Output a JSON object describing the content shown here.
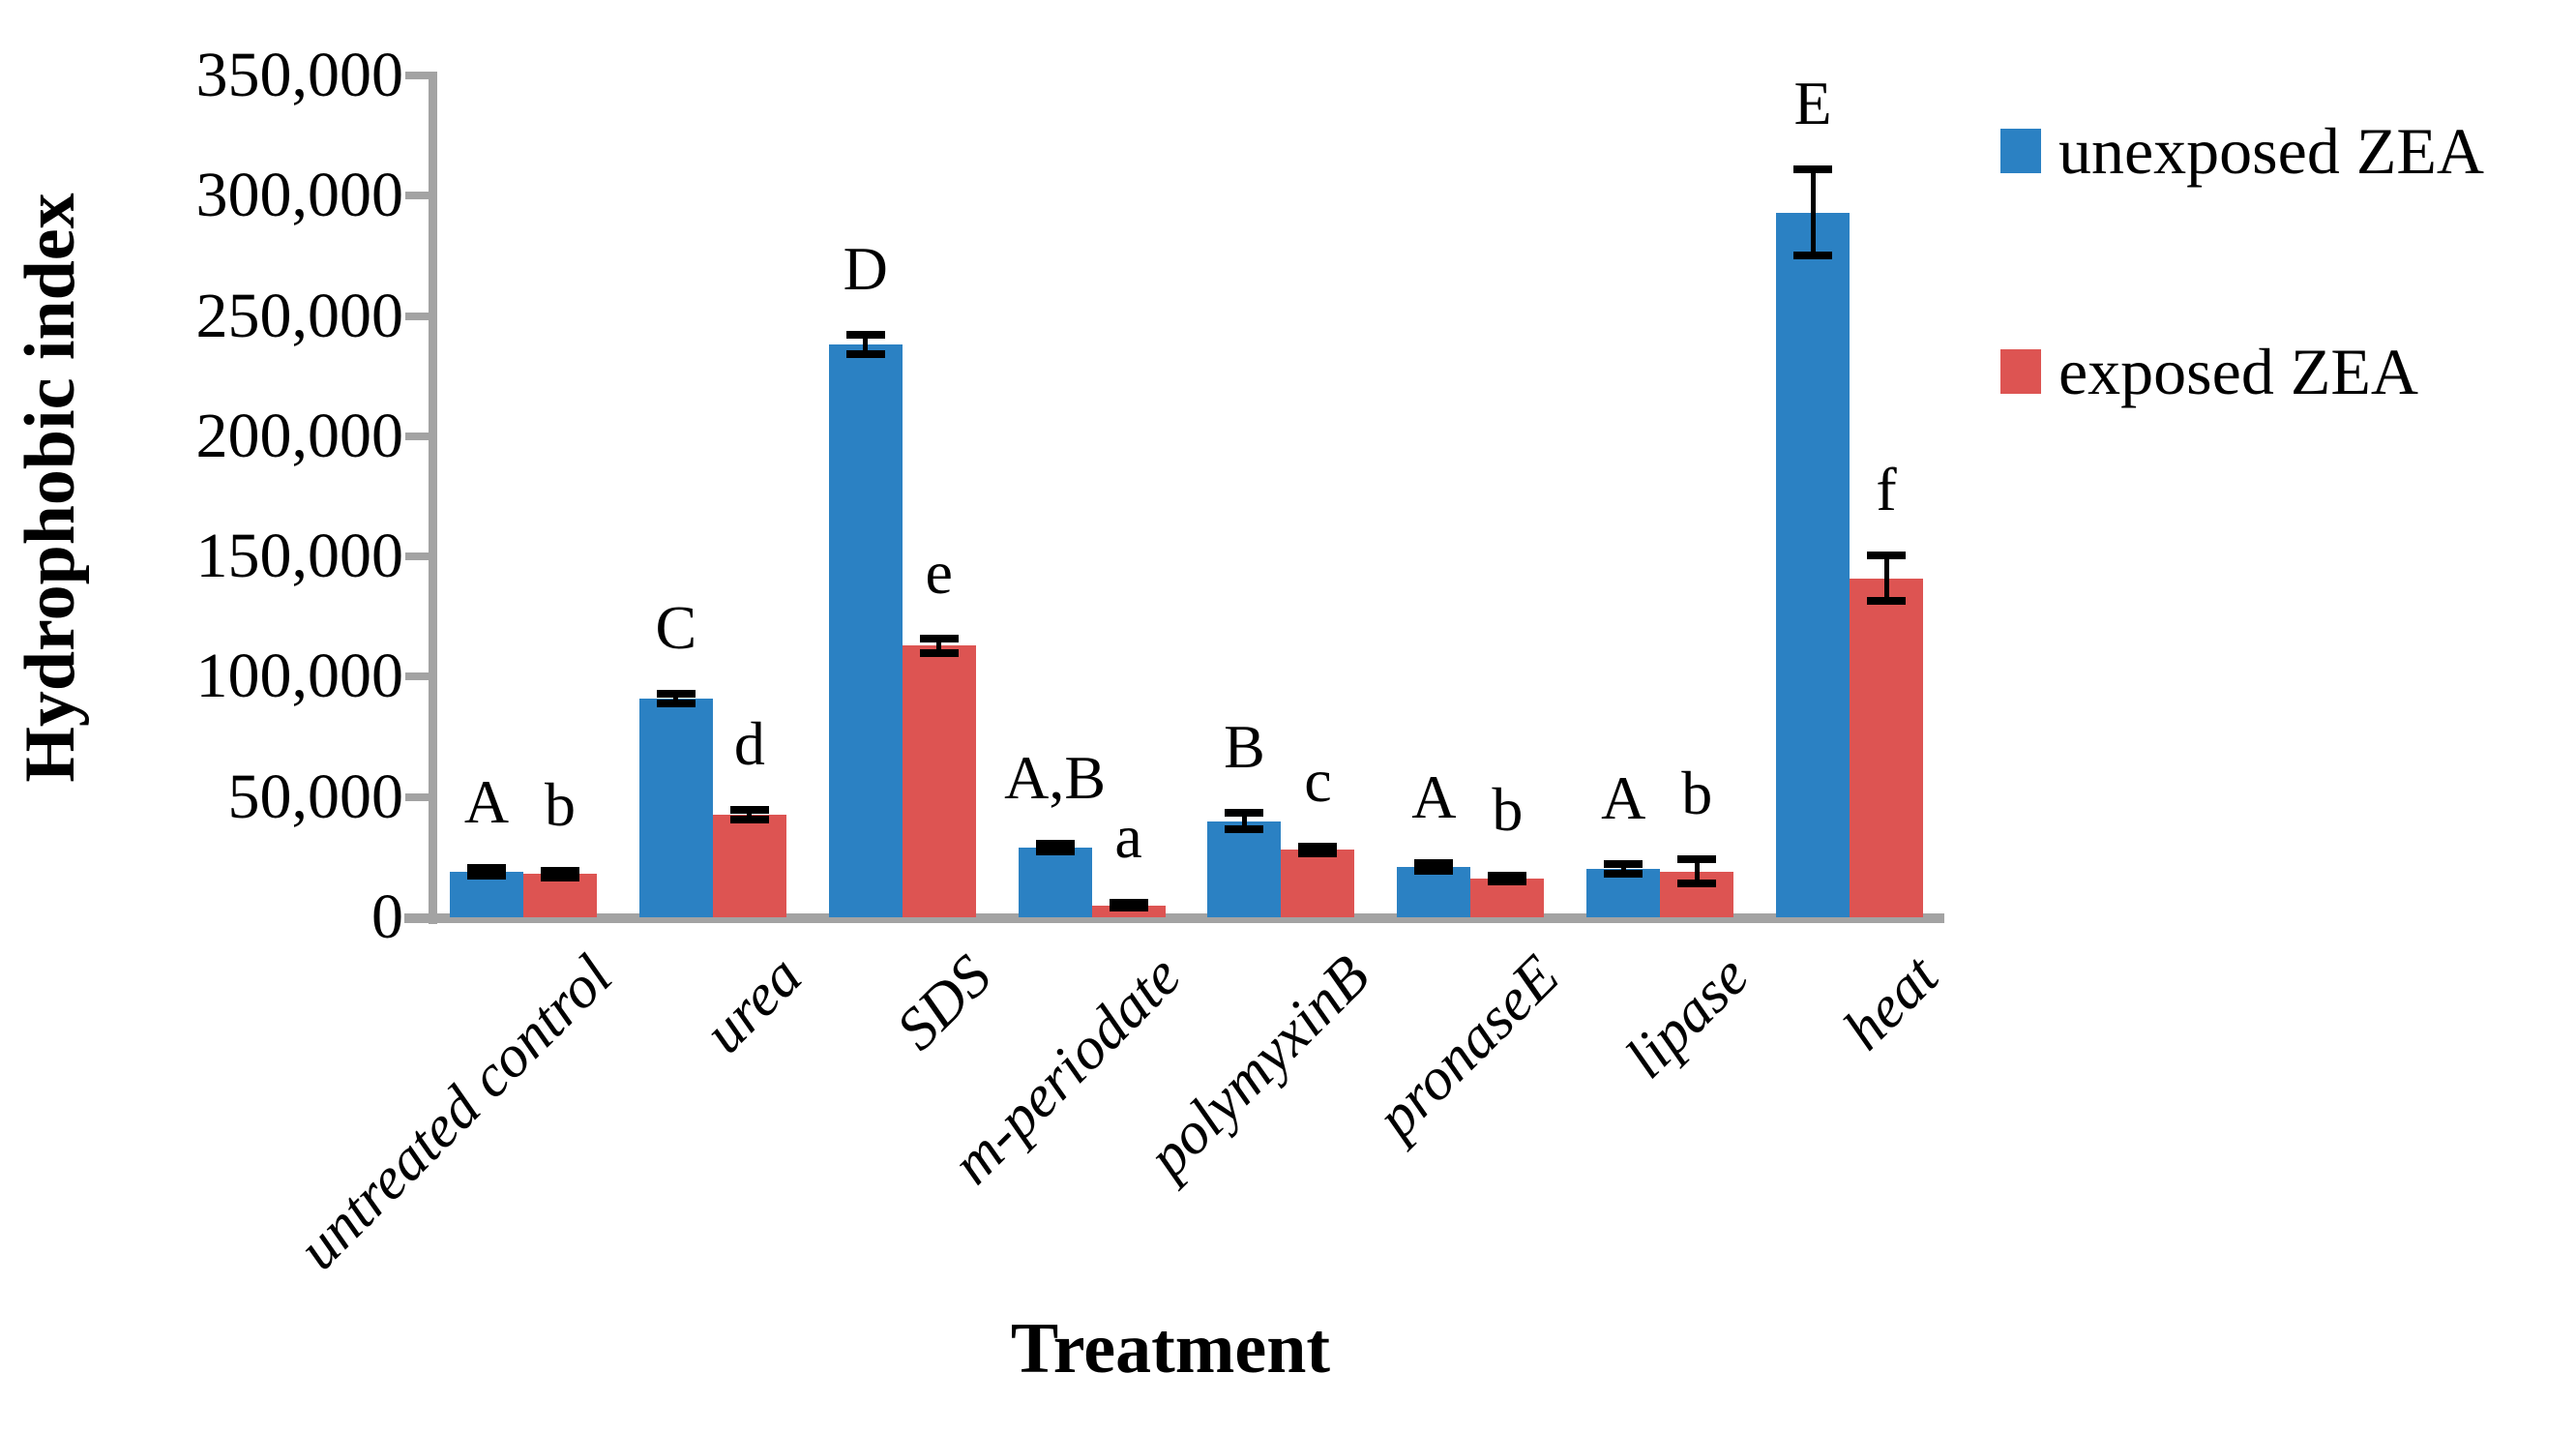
{
  "chart_data": {
    "type": "bar",
    "title": "",
    "xlabel": "Treatment",
    "ylabel": "Hydrophobic index",
    "ylim": [
      0,
      350000
    ],
    "ytick_step": 50000,
    "ytick_labels": [
      "0",
      "50,000",
      "100,000",
      "150,000",
      "200,000",
      "250,000",
      "300,000",
      "350,000"
    ],
    "grid": false,
    "legend_position": "right",
    "categories": [
      "untreated control",
      "urea",
      "SDS",
      "m-periodate",
      "polymyxinB",
      "pronaseE",
      "lipase",
      "heat"
    ],
    "series": [
      {
        "name": "unexposed ZEA",
        "color": "#2b81c3",
        "values": [
          19000,
          91000,
          238000,
          29000,
          40000,
          21000,
          20000,
          293000
        ],
        "errors": [
          1500,
          2000,
          4000,
          1500,
          3500,
          1500,
          2000,
          18000
        ],
        "letters": [
          "A",
          "C",
          "D",
          "A,B",
          "B",
          "A",
          "A",
          "E"
        ]
      },
      {
        "name": "exposed ZEA",
        "color": "#dd5452",
        "values": [
          18000,
          42500,
          113000,
          5000,
          28000,
          16000,
          19000,
          141000
        ],
        "errors": [
          1500,
          2000,
          3000,
          1000,
          1500,
          1200,
          5000,
          9500
        ],
        "letters": [
          "b",
          "d",
          "e",
          "a",
          "c",
          "b",
          "b",
          "f"
        ]
      }
    ],
    "error_bar_color": "#000000",
    "axis_color": "#a3a3a3",
    "text_color": "#000000"
  }
}
